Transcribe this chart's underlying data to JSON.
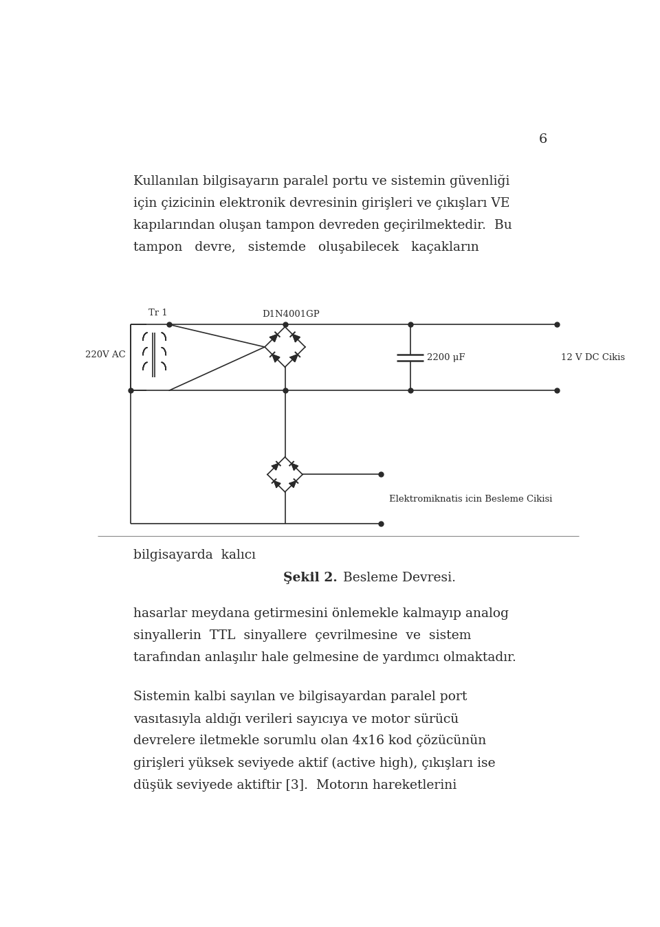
{
  "page_number": "6",
  "background_color": "#ffffff",
  "text_color": "#2a2a2a",
  "page_width": 9.6,
  "page_height": 13.49,
  "para1_line1": "Kullanılan bilgisayarın paralel portu ve sistemin güvenliği",
  "para1_line2": "için çizicinin elektronik devresinin girişleri ve çıkışları VE",
  "para1_line3": "kapılarından oluşan tampon devreden geçirilmektedir.  Bu",
  "para1_line4": "tampon   devre,   sistemde   oluşabilecek   kaçakların",
  "text_bilgisayarda": "bilgisayarda  kalıcı",
  "caption_bold": "Şekil 2.",
  "caption_normal": " Besleme Devresi.",
  "paragraph2_line1": "hasarlar meydana getirmesini önlemekle kalmayıp analog",
  "paragraph2_line2": "sinyallerin  TTL  sinyallere  çevrilmesine  ve  sistem",
  "paragraph2_line3": "tarafından anlaşılır hale gelmesine de yardımcı olmaktadır.",
  "paragraph3_line1": "Sistemin kalbi sayılan ve bilgisayardan paralel port",
  "paragraph3_line2": "vasıtasıyla aldığı verileri sayıcıya ve motor sürücü",
  "paragraph3_line3": "devrelere iletmekle sorumlu olan 4x16 kod çözücünün",
  "paragraph3_line4": "girişleri yüksek seviyede aktif (active high), çıkışları ise",
  "paragraph3_line5": "düşük seviyede aktiftir [3].  Motorın hareketlerini",
  "font_size_body": 13.5,
  "font_size_small": 9.5,
  "font_size_pagenum": 14
}
